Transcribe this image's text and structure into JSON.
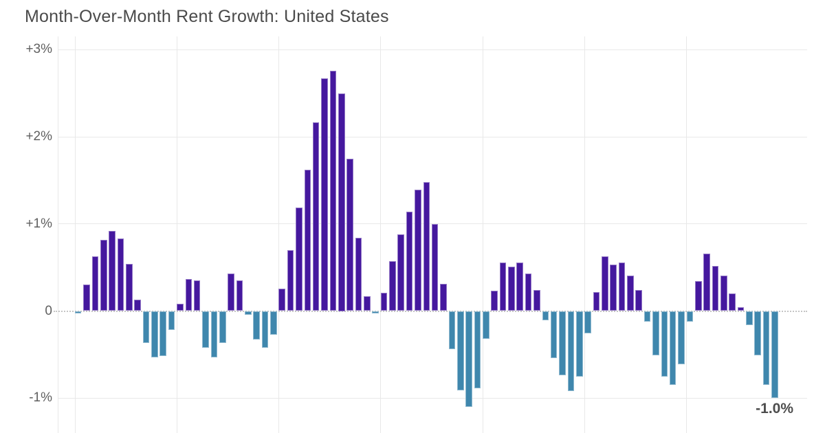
{
  "title": "Month-Over-Month Rent Growth: United States",
  "annotation": {
    "text": "-1.0%"
  },
  "y_axis": {
    "ticks": [
      {
        "label": "+3%",
        "value": 3
      },
      {
        "label": "+2%",
        "value": 2
      },
      {
        "label": "+1%",
        "value": 1
      },
      {
        "label": "0",
        "value": 0
      },
      {
        "label": "-1%",
        "value": -1
      }
    ]
  },
  "colors": {
    "positive_bar": "#45189e",
    "negative_bar": "#3f87ad",
    "gridline": "#e9e9e9",
    "zero_line": "#c4c4c4",
    "title_text": "#4a4a4a",
    "tick_text": "#5f5f5f",
    "annotation_text": "#4d4d4d",
    "background": "#ffffff"
  },
  "chart_data": {
    "type": "bar",
    "title": "Month-Over-Month Rent Growth: United States",
    "unit": "%",
    "ylabel": "",
    "xlabel": "",
    "ylim": [
      -1.4,
      3.16
    ],
    "y_ticks": [
      3,
      2,
      1,
      0,
      -1
    ],
    "grid": "horizontal gridlines at y ticks, vertical gridlines at 12-month boundaries, dotted zero line",
    "bars_per_year": 12,
    "year_gridline_indices": [
      0,
      12,
      24,
      36,
      48,
      60,
      72
    ],
    "values": [
      -0.03,
      0.3,
      0.63,
      0.82,
      0.92,
      0.83,
      0.54,
      0.13,
      -0.37,
      -0.53,
      -0.52,
      -0.22,
      0.08,
      0.37,
      0.35,
      -0.42,
      -0.53,
      -0.37,
      0.43,
      0.35,
      -0.04,
      -0.33,
      -0.42,
      -0.27,
      0.26,
      0.7,
      1.19,
      1.62,
      2.17,
      2.67,
      2.76,
      2.5,
      1.75,
      0.84,
      0.17,
      -0.03,
      0.21,
      0.57,
      0.88,
      1.14,
      1.39,
      1.48,
      1.0,
      0.31,
      -0.44,
      -0.91,
      -1.1,
      -0.89,
      -0.32,
      0.23,
      0.56,
      0.51,
      0.56,
      0.43,
      0.24,
      -0.11,
      -0.54,
      -0.74,
      -0.92,
      -0.75,
      -0.26,
      0.22,
      0.63,
      0.53,
      0.56,
      0.41,
      0.24,
      -0.12,
      -0.51,
      -0.75,
      -0.85,
      -0.61,
      -0.12,
      0.34,
      0.66,
      0.52,
      0.41,
      0.2,
      0.04,
      -0.16,
      -0.51,
      -0.85,
      -1.0
    ],
    "last_bar_label": "-1.0%"
  }
}
